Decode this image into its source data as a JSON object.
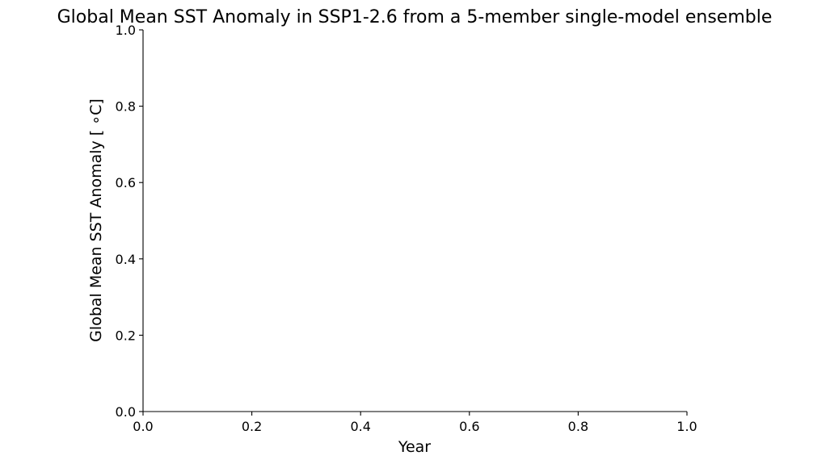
{
  "chart_data": {
    "type": "line",
    "title": "Global Mean SST Anomaly in SSP1-2.6 from a 5-member single-model ensemble",
    "xlabel": "Year",
    "ylabel": "Global Mean SST Anomaly [$^\\circ$C]",
    "ylabel_display": "Global Mean SST Anomaly [ ∘C]",
    "xlim": [
      0.0,
      1.0
    ],
    "ylim": [
      0.0,
      1.0
    ],
    "x_ticks": [
      0.0,
      0.2,
      0.4,
      0.6,
      0.8,
      1.0
    ],
    "x_tick_labels": [
      "0.0",
      "0.2",
      "0.4",
      "0.6",
      "0.8",
      "1.0"
    ],
    "y_ticks": [
      0.0,
      0.2,
      0.4,
      0.6,
      0.8,
      1.0
    ],
    "y_tick_labels": [
      "0.0",
      "0.2",
      "0.4",
      "0.6",
      "0.8",
      "1.0"
    ],
    "series": [],
    "grid": false,
    "spines": [
      "left",
      "bottom"
    ]
  },
  "colors": {
    "axis": "#000000",
    "text": "#000000",
    "background": "#ffffff"
  }
}
